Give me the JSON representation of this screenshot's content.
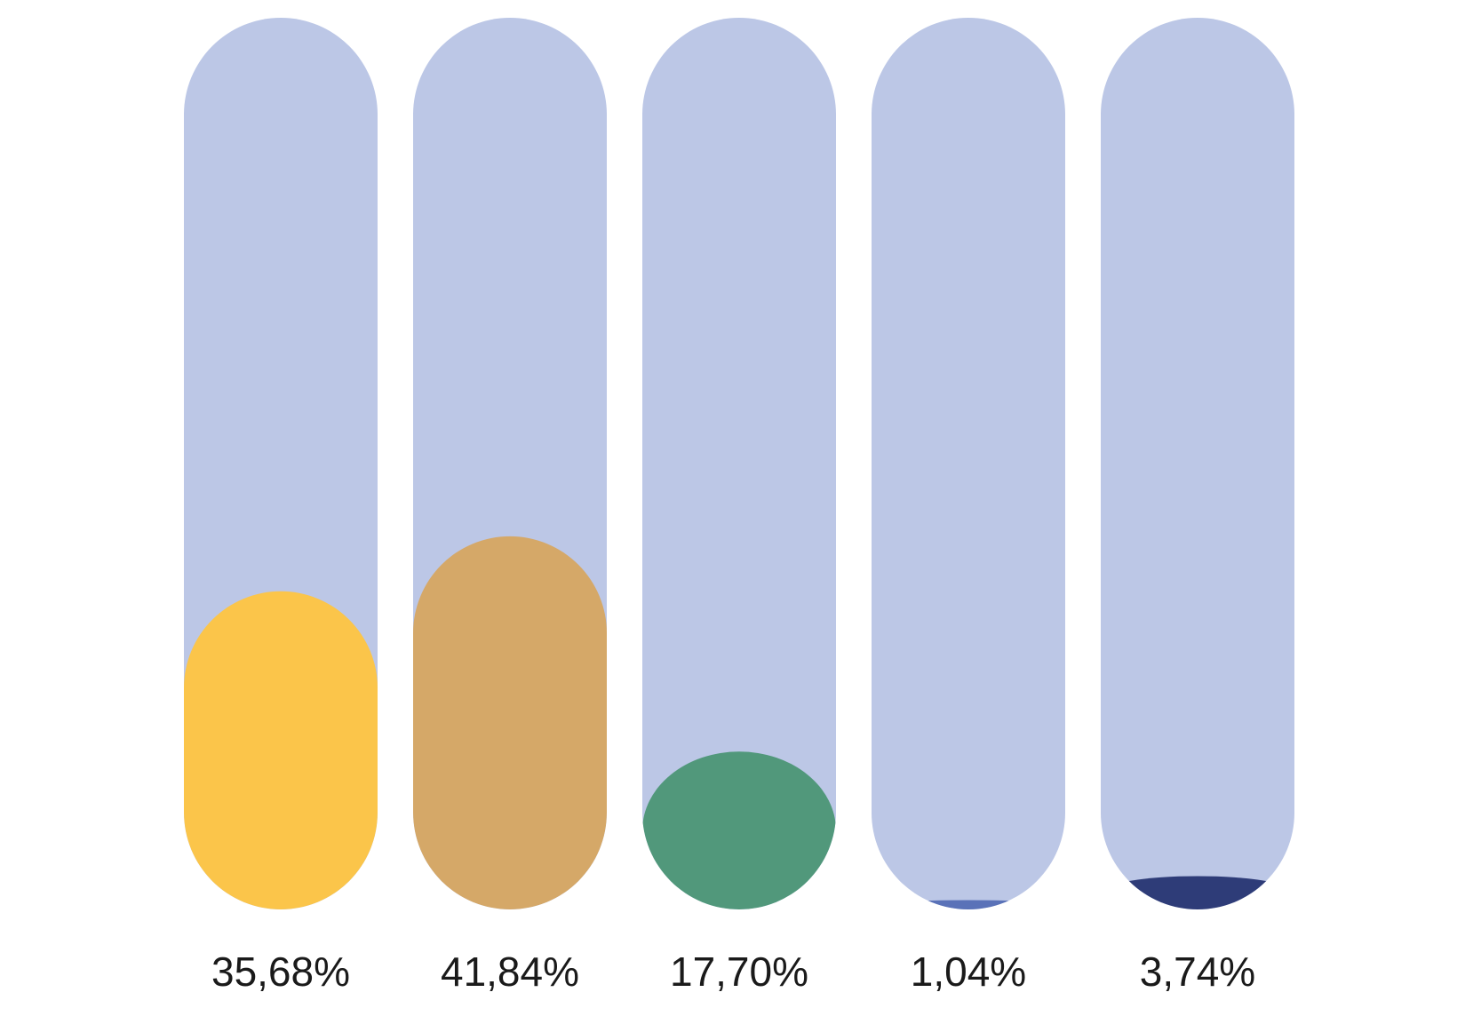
{
  "chart_data": {
    "type": "bar",
    "orientation": "vertical",
    "style": "rounded-pill-fill",
    "ylim": [
      0,
      100
    ],
    "track_color": "#BCC7E6",
    "grid": false,
    "legend": "none",
    "values": [
      35.68,
      41.84,
      17.7,
      1.04,
      3.74
    ],
    "labels": [
      "35,68%",
      "41,84%",
      "17,70%",
      "1,04%",
      "3,74%"
    ],
    "colors": [
      "#FBC54A",
      "#D5A868",
      "#51987B",
      "#5A72B8",
      "#2E3C78"
    ]
  }
}
